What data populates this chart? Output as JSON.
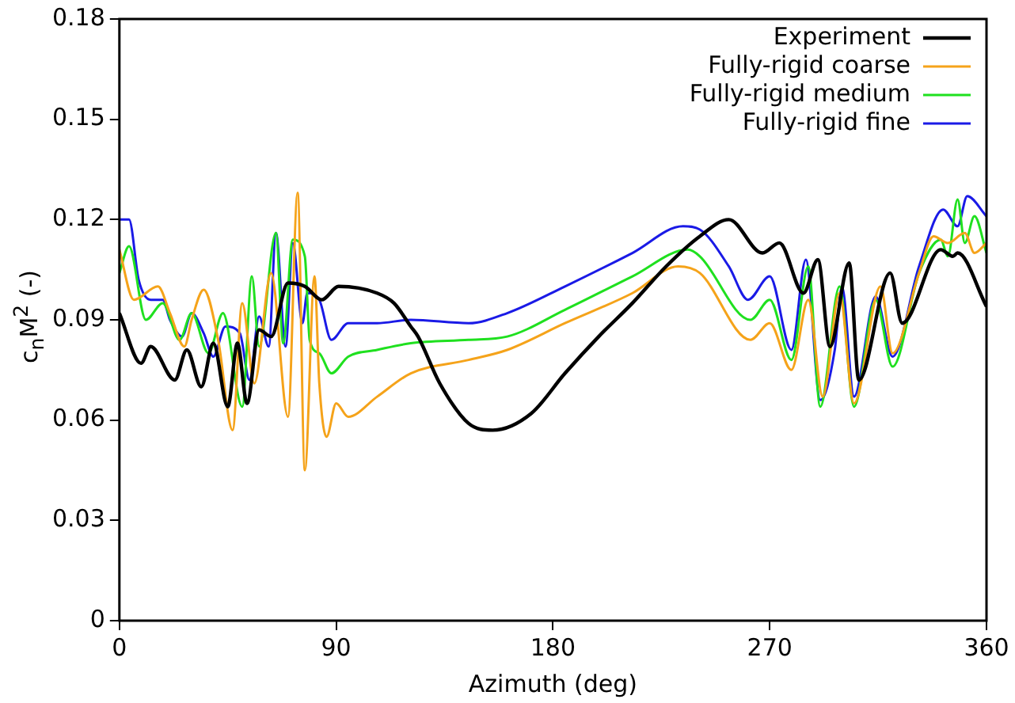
{
  "chart_data": {
    "type": "line",
    "xlabel": "Azimuth (deg)",
    "ylabel": "c$_{n}$M$^{2}$ (-)",
    "xlim": [
      0,
      360
    ],
    "xticks": [
      0,
      90,
      180,
      270,
      360
    ],
    "ylim": [
      0,
      0.18
    ],
    "yticks": [
      0,
      0.03,
      0.06,
      0.09,
      0.12,
      0.15,
      0.18
    ],
    "grid": false,
    "legend": "top right",
    "marker": "none",
    "line_style": "solid",
    "series": [
      {
        "name": "Experiment",
        "color": "#000000",
        "x": [
          0,
          9,
          13,
          23,
          28,
          34,
          39,
          45,
          49,
          53,
          58,
          63,
          70,
          77,
          84,
          91,
          107,
          114,
          121,
          124,
          133,
          145,
          155,
          171,
          185,
          199,
          213,
          227,
          241,
          253,
          267,
          274,
          284,
          290,
          295,
          303,
          307,
          320,
          325,
          341,
          346,
          348,
          360
        ],
        "values": [
          0.092,
          0.077,
          0.082,
          0.072,
          0.081,
          0.07,
          0.083,
          0.064,
          0.083,
          0.065,
          0.087,
          0.085,
          0.101,
          0.1,
          0.096,
          0.1,
          0.098,
          0.095,
          0.088,
          0.085,
          0.071,
          0.059,
          0.057,
          0.062,
          0.074,
          0.085,
          0.095,
          0.106,
          0.115,
          0.12,
          0.11,
          0.113,
          0.098,
          0.108,
          0.082,
          0.107,
          0.072,
          0.104,
          0.089,
          0.111,
          0.109,
          0.11,
          0.094
        ]
      },
      {
        "name": "Fully-rigid coarse",
        "color": "#f5a31a",
        "x": [
          0,
          6,
          16,
          21,
          27,
          30,
          35,
          41,
          47,
          51,
          56,
          63,
          70,
          74,
          77,
          81,
          83,
          86,
          90,
          95,
          107,
          121,
          145,
          161,
          185,
          213,
          232,
          241,
          262,
          270,
          279,
          286,
          292,
          299,
          305,
          316,
          321,
          332,
          338,
          344,
          351,
          355,
          360
        ],
        "values": [
          0.111,
          0.096,
          0.1,
          0.092,
          0.082,
          0.09,
          0.099,
          0.084,
          0.057,
          0.095,
          0.071,
          0.104,
          0.061,
          0.128,
          0.045,
          0.103,
          0.071,
          0.055,
          0.065,
          0.061,
          0.067,
          0.074,
          0.078,
          0.081,
          0.089,
          0.098,
          0.106,
          0.104,
          0.084,
          0.089,
          0.075,
          0.096,
          0.067,
          0.098,
          0.065,
          0.1,
          0.08,
          0.104,
          0.115,
          0.113,
          0.116,
          0.11,
          0.113
        ]
      },
      {
        "name": "Fully-rigid medium",
        "color": "#1fe01f",
        "x": [
          0,
          4,
          11,
          18,
          25,
          30,
          37,
          43,
          51,
          55,
          58,
          65,
          68,
          72,
          77,
          79,
          83,
          88,
          95,
          107,
          121,
          145,
          161,
          185,
          213,
          236,
          241,
          262,
          270,
          279,
          286,
          291,
          299,
          305,
          314,
          321,
          332,
          341,
          344,
          348,
          351,
          355,
          360
        ],
        "values": [
          0.104,
          0.112,
          0.09,
          0.095,
          0.084,
          0.092,
          0.08,
          0.092,
          0.064,
          0.103,
          0.082,
          0.116,
          0.083,
          0.114,
          0.109,
          0.084,
          0.08,
          0.074,
          0.079,
          0.081,
          0.083,
          0.084,
          0.085,
          0.093,
          0.103,
          0.111,
          0.109,
          0.09,
          0.096,
          0.078,
          0.106,
          0.064,
          0.1,
          0.064,
          0.096,
          0.076,
          0.104,
          0.114,
          0.109,
          0.126,
          0.113,
          0.121,
          0.11
        ]
      },
      {
        "name": "Fully-rigid fine",
        "color": "#1a1ae6",
        "x": [
          0,
          4,
          8,
          13,
          18,
          21,
          26,
          30,
          35,
          39,
          44,
          50,
          54,
          58,
          62,
          65,
          69,
          72,
          76,
          78,
          83,
          88,
          95,
          107,
          121,
          145,
          161,
          185,
          213,
          234,
          241,
          253,
          261,
          270,
          279,
          285,
          291,
          297,
          300,
          305,
          314,
          321,
          332,
          342,
          348,
          352,
          360
        ],
        "values": [
          0.12,
          0.12,
          0.102,
          0.096,
          0.096,
          0.09,
          0.085,
          0.092,
          0.086,
          0.079,
          0.088,
          0.086,
          0.072,
          0.091,
          0.082,
          0.116,
          0.082,
          0.113,
          0.089,
          0.098,
          0.096,
          0.084,
          0.089,
          0.089,
          0.09,
          0.089,
          0.092,
          0.1,
          0.11,
          0.118,
          0.117,
          0.106,
          0.096,
          0.103,
          0.081,
          0.108,
          0.066,
          0.081,
          0.1,
          0.067,
          0.097,
          0.079,
          0.106,
          0.123,
          0.118,
          0.127,
          0.121
        ]
      }
    ]
  }
}
